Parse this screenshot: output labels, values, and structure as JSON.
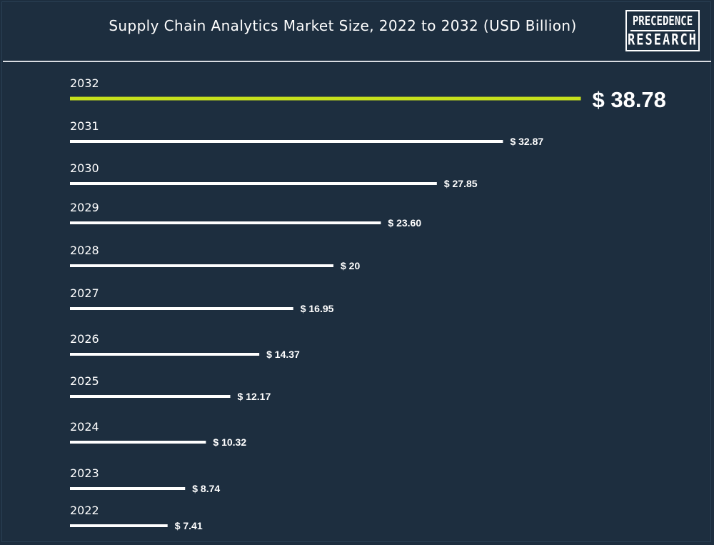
{
  "title": "Supply Chain Analytics Market Size, 2022 to 2032 (USD Billion)",
  "logo": {
    "line1": "PRECEDENCE",
    "line2": "RESEARCH"
  },
  "colors": {
    "background": "#1d2e3f",
    "bar": "#ffffff",
    "highlight": "#c6e01c",
    "text": "#ffffff"
  },
  "chart_data": {
    "type": "bar",
    "orientation": "horizontal",
    "title": "Supply Chain Analytics Market Size, 2022 to 2032 (USD Billion)",
    "categories": [
      "2032",
      "2031",
      "2030",
      "2029",
      "2028",
      "2027",
      "2026",
      "2025",
      "2024",
      "2023",
      "2022"
    ],
    "values": [
      38.78,
      32.87,
      27.85,
      23.6,
      20,
      16.95,
      14.37,
      12.17,
      10.32,
      8.74,
      7.41
    ],
    "value_labels": [
      "$ 38.78",
      "$ 32.87",
      "$ 27.85",
      "$ 23.60",
      "$ 20",
      "$ 16.95",
      "$ 14.37",
      "$ 12.17",
      "$ 10.32",
      "$ 8.74",
      "$ 7.41"
    ],
    "highlight_category": "2032",
    "grid": false,
    "legend": "none"
  }
}
